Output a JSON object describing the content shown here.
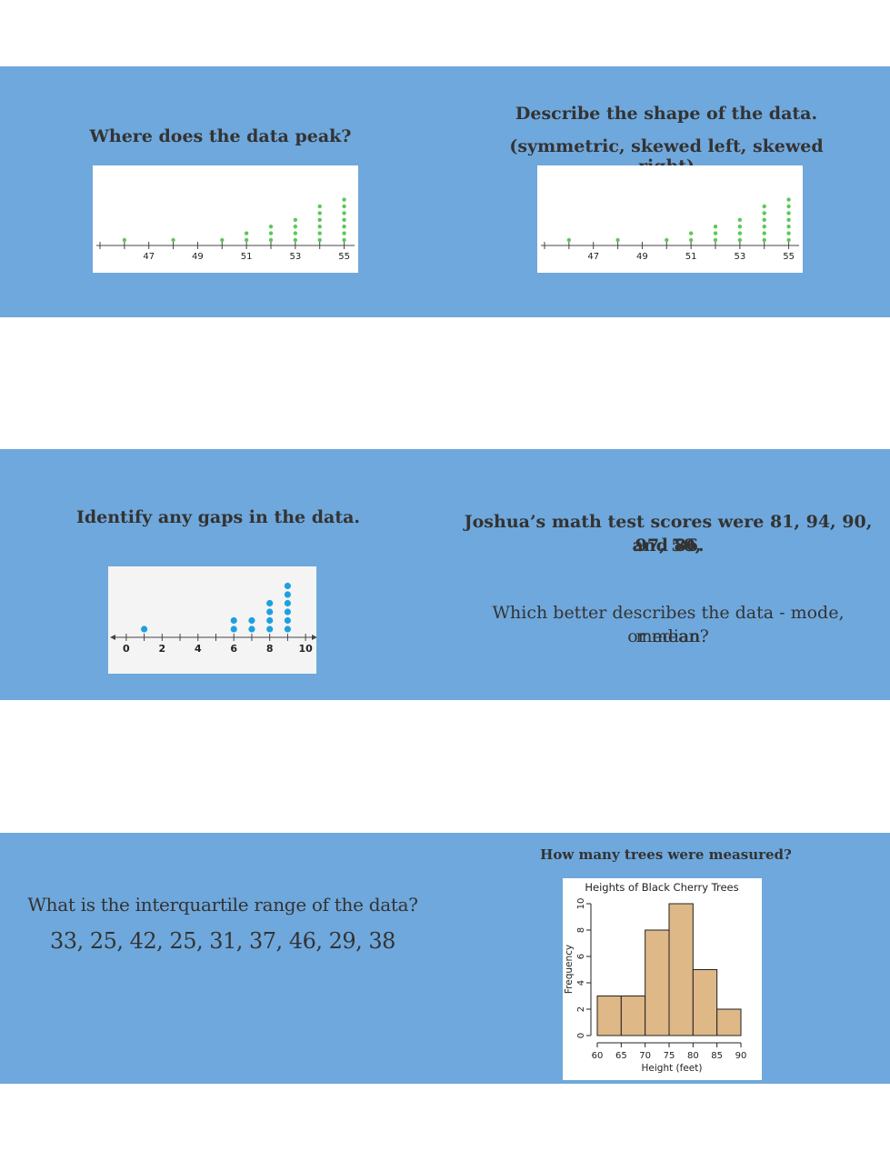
{
  "cards": {
    "peak": {
      "question": "Where does the data peak?"
    },
    "shape": {
      "question_line1": "Describe the shape of the data.",
      "question_line2": "(symmetric, skewed left, skewed right)"
    },
    "gaps": {
      "question": "Identify any gaps in the data."
    },
    "joshua": {
      "question_line1": "Joshua’s math test scores were 81, 94, 90, 97, 50,",
      "question_line2": "and 86.",
      "followup_line1": "Which better describes the data - mode, median",
      "followup_line2": "or mean?"
    },
    "iqr": {
      "question": "What is the interquartile range of the data?",
      "values": "33, 25, 42, 25, 31, 37, 46, 29, 38"
    },
    "trees": {
      "question": "How many trees were measured?"
    }
  },
  "colors": {
    "band": "#6fa8dc",
    "green_dot": "#5ac85a",
    "blue_dot": "#1ea0e0",
    "bar_fill": "#deb887"
  },
  "chart_data": [
    {
      "type": "scatter",
      "subtype": "dot-plot",
      "x": [
        46,
        48,
        50,
        51,
        52,
        53,
        54,
        55
      ],
      "counts": [
        1,
        1,
        1,
        2,
        3,
        4,
        6,
        7
      ],
      "tick_labels": [
        "47",
        "49",
        "51",
        "53",
        "55"
      ],
      "xlim": [
        45,
        55.5
      ]
    },
    {
      "type": "scatter",
      "subtype": "dot-plot",
      "x": [
        46,
        48,
        50,
        51,
        52,
        53,
        54,
        55
      ],
      "counts": [
        1,
        1,
        1,
        2,
        3,
        4,
        6,
        7
      ],
      "tick_labels": [
        "47",
        "49",
        "51",
        "53",
        "55"
      ],
      "xlim": [
        45,
        55.5
      ]
    },
    {
      "type": "scatter",
      "subtype": "dot-plot",
      "x": [
        1,
        6,
        7,
        8,
        9
      ],
      "counts": [
        1,
        2,
        2,
        4,
        6
      ],
      "tick_labels": [
        "0",
        "2",
        "4",
        "6",
        "8",
        "10"
      ],
      "xlim": [
        -0.5,
        10.5
      ]
    },
    {
      "type": "bar",
      "subtype": "histogram",
      "title": "Heights of Black Cherry Trees",
      "xlabel": "Height (feet)",
      "ylabel": "Frequency",
      "bins": [
        [
          60,
          65
        ],
        [
          65,
          70
        ],
        [
          70,
          75
        ],
        [
          75,
          80
        ],
        [
          80,
          85
        ],
        [
          85,
          90
        ]
      ],
      "values": [
        3,
        3,
        8,
        10,
        5,
        2
      ],
      "x_tick_labels": [
        "60",
        "65",
        "70",
        "75",
        "80",
        "85",
        "90"
      ],
      "y_tick_labels": [
        "0",
        "2",
        "4",
        "6",
        "8",
        "10"
      ],
      "ylim": [
        0,
        10
      ]
    }
  ]
}
